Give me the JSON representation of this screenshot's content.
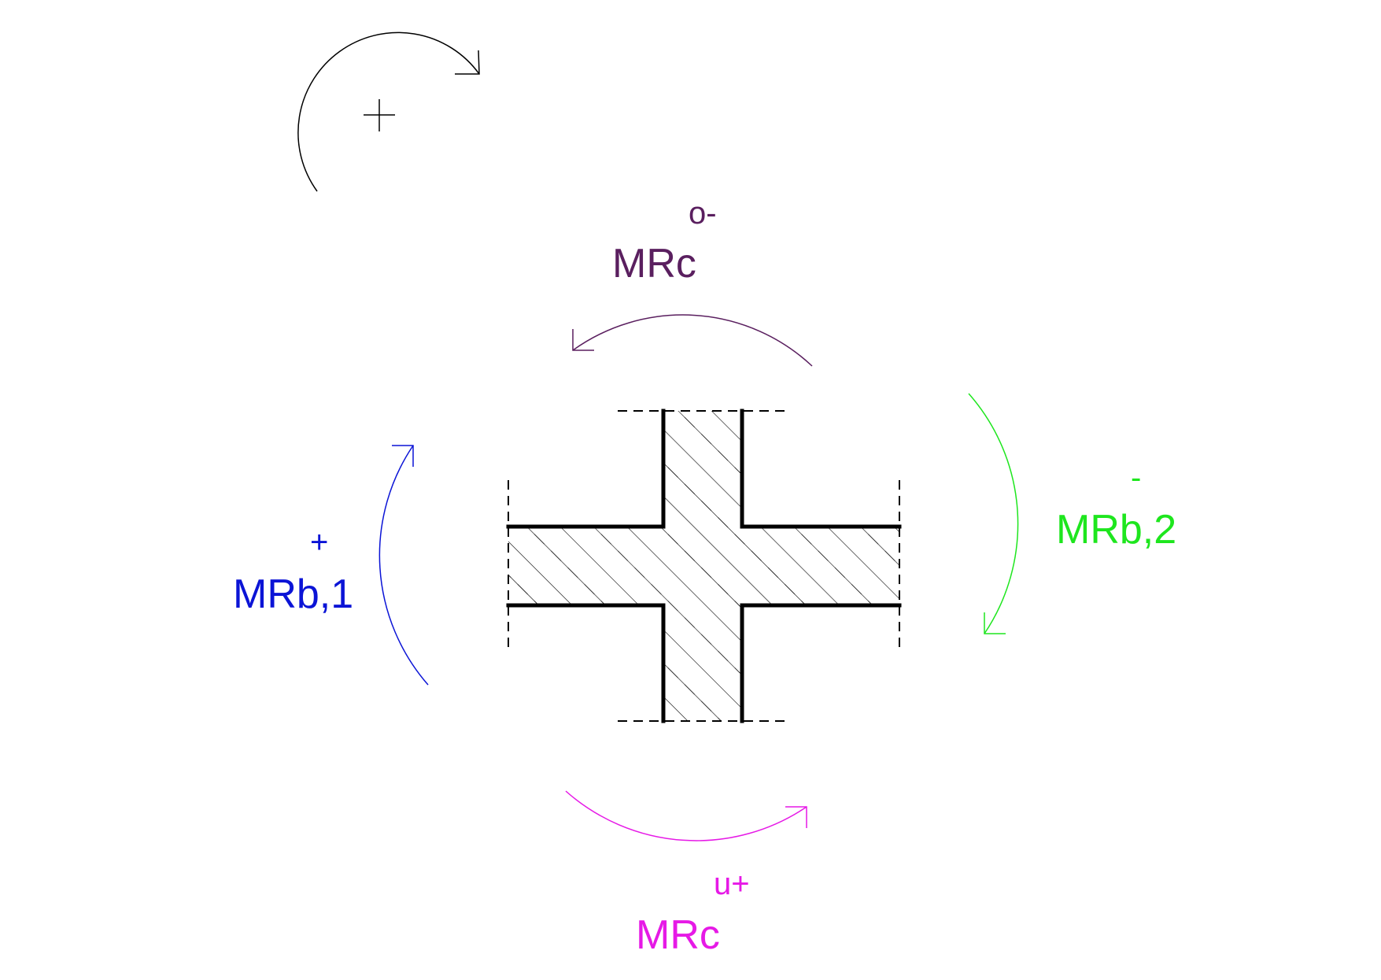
{
  "sign_convention": {
    "symbol": "+",
    "color": "#000000"
  },
  "moments": {
    "column_top": {
      "name": "MRc",
      "superscript": "o-",
      "color": "#5a1f5f"
    },
    "column_bottom": {
      "name": "MRc",
      "superscript": "u+",
      "color": "#e619e6"
    },
    "beam_left": {
      "name": "MRb,1",
      "superscript": "+",
      "color": "#0b14d6"
    },
    "beam_right": {
      "name": "MRb,2",
      "superscript": "-",
      "color": "#1ee61e"
    }
  },
  "joint": {
    "outline_color": "#000000",
    "hatch_color": "#000000"
  }
}
